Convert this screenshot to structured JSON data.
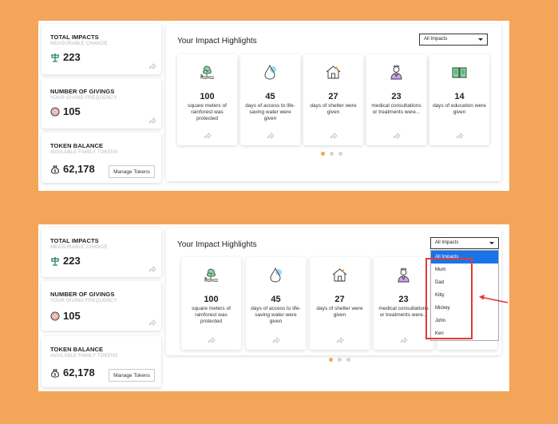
{
  "panels": [
    {
      "stats": {
        "total": {
          "title": "TOTAL IMPACTS",
          "subtitle": "MEASURABLE CHANGE",
          "value": "223",
          "icon": "tree-icon"
        },
        "givings": {
          "title": "NUMBER OF GIVINGS",
          "subtitle": "YOUR GIVING FREQUENCY",
          "value": "105",
          "icon": "target-icon"
        },
        "token": {
          "title": "TOKEN BALANCE",
          "subtitle": "AVAILABLE FAMILY TOKENS",
          "value": "62,178",
          "icon": "money-bag-icon",
          "button": "Manage Tokens"
        }
      },
      "highlights_title": "Your Impact Highlights",
      "filter_value": "All Impacts",
      "cards": [
        {
          "icon": "rainforest-icon",
          "value": "100",
          "desc": "square meters of rainforest was protected"
        },
        {
          "icon": "water-drop-icon",
          "value": "45",
          "desc": "days of access to life-saving water were given"
        },
        {
          "icon": "house-icon",
          "value": "27",
          "desc": "days of shelter were given"
        },
        {
          "icon": "doctor-icon",
          "value": "23",
          "desc": "medical consultations or treatments were..."
        },
        {
          "icon": "book-icon",
          "value": "14",
          "desc": "days of education were given"
        }
      ]
    },
    {
      "stats": {
        "total": {
          "title": "TOTAL IMPACTS",
          "subtitle": "MEASURABLE CHANGE",
          "value": "223",
          "icon": "tree-icon"
        },
        "givings": {
          "title": "NUMBER OF GIVINGS",
          "subtitle": "YOUR GIVING FREQUENCY",
          "value": "105",
          "icon": "target-icon"
        },
        "token": {
          "title": "TOKEN BALANCE",
          "subtitle": "AVAILABLE FAMILY TOKENS",
          "value": "62,178",
          "icon": "money-bag-icon",
          "button": "Manage Tokens"
        }
      },
      "highlights_title": "Your Impact Highlights",
      "filter_value": "All Impacts",
      "cards": [
        {
          "icon": "rainforest-icon",
          "value": "100",
          "desc": "square meters of rainforest was protected"
        },
        {
          "icon": "water-drop-icon",
          "value": "45",
          "desc": "days of access to life-saving water were given"
        },
        {
          "icon": "house-icon",
          "value": "27",
          "desc": "days of shelter were given"
        },
        {
          "icon": "doctor-icon",
          "value": "23",
          "desc": "medical consultations or treatments were..."
        }
      ]
    }
  ],
  "dropdown_options": [
    "All Impacts",
    "Mum",
    "Dad",
    "Kitty",
    "Mickey",
    "John",
    "Ken"
  ],
  "colors": {
    "background": "#f3a55a",
    "dot_active": "#f3a55a",
    "selected_option": "#1a73e8",
    "annotation": "#e53935"
  }
}
